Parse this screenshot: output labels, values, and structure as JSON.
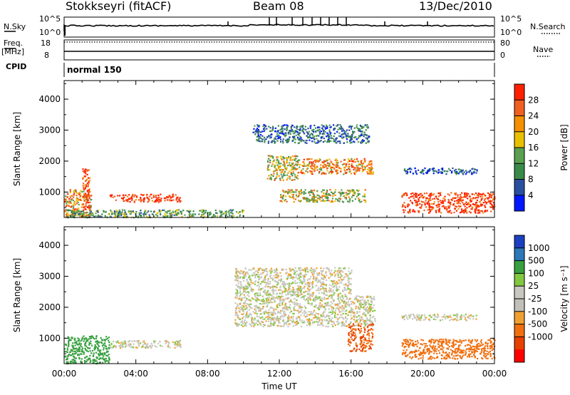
{
  "header": {
    "station": "Stokkseyri (fitACF)",
    "beam": "Beam 08",
    "date": "13/Dec/2010"
  },
  "strip_labels": {
    "nsky": "N.Sky",
    "nsky_top": "10^5",
    "nsky_bottom": "10^0",
    "nsearch": "N.Search",
    "nsearch_top": "10^5",
    "nsearch_bottom": "10^0",
    "freq": "Freq.",
    "freq_unit": "[MHz]",
    "freq_top": "18",
    "freq_bottom": "8",
    "nave": "Nave",
    "nave_top": "80",
    "nave_bottom": "0",
    "cpid": "CPID",
    "mode": "normal 150"
  },
  "colors": {
    "power": [
      "#0018ff",
      "#2a4fa0",
      "#3a8a4a",
      "#5aa050",
      "#e8c000",
      "#f59000",
      "#f06020",
      "#ff2000"
    ],
    "velocity": [
      "#1c40c0",
      "#2c78b8",
      "#38a040",
      "#80c840",
      "#c8c8c0",
      "#c0c0b8",
      "#f0a030",
      "#f07010",
      "#e84000",
      "#ff0000"
    ],
    "gray_scatter": "#c8c8c0"
  },
  "chart_data": [
    {
      "type": "heatmap",
      "title": "",
      "xlabel": "Time UT",
      "ylabel": "Slant Range [km]",
      "x_ticks": [
        "00:00",
        "04:00",
        "08:00",
        "12:00",
        "16:00",
        "20:00",
        "00:00"
      ],
      "y_ticks": [
        1000,
        2000,
        3000,
        4000
      ],
      "ylim": [
        180,
        4600
      ],
      "colorbar": {
        "label": "Power [dB]",
        "ticks": [
          "4",
          "8",
          "12",
          "16",
          "20",
          "24",
          "28"
        ]
      },
      "regions": [
        {
          "t0": 0.0,
          "t1": 1.5,
          "r0": 200,
          "r1": 1100,
          "value": 22
        },
        {
          "t0": 1.0,
          "t1": 1.4,
          "r0": 400,
          "r1": 1800,
          "value": 26
        },
        {
          "t0": 2.5,
          "t1": 6.5,
          "r0": 700,
          "r1": 950,
          "value": 27
        },
        {
          "t0": 0.0,
          "t1": 10.0,
          "r0": 200,
          "r1": 450,
          "value": 14
        },
        {
          "t0": 11.3,
          "t1": 13.0,
          "r0": 1400,
          "r1": 2200,
          "value": 18
        },
        {
          "t0": 13.0,
          "t1": 17.2,
          "r0": 1600,
          "r1": 2100,
          "value": 22
        },
        {
          "t0": 12.0,
          "t1": 16.8,
          "r0": 700,
          "r1": 1100,
          "value": 18
        },
        {
          "t0": 18.8,
          "t1": 24.0,
          "r0": 350,
          "r1": 1000,
          "value": 27
        },
        {
          "t0": 18.8,
          "t1": 23.0,
          "r0": 1600,
          "r1": 1800,
          "value": 8
        },
        {
          "t0": 10.5,
          "t1": 17.0,
          "r0": 2600,
          "r1": 3200,
          "value": 10
        }
      ]
    },
    {
      "type": "heatmap",
      "title": "",
      "xlabel": "Time UT",
      "ylabel": "Slant Range [km]",
      "x_ticks": [
        "00:00",
        "04:00",
        "08:00",
        "12:00",
        "16:00",
        "20:00",
        "00:00"
      ],
      "y_ticks": [
        1000,
        2000,
        3000,
        4000
      ],
      "ylim": [
        180,
        4600
      ],
      "colorbar": {
        "label": "Velocity [m s⁻¹]",
        "ticks": [
          "1000",
          "500",
          "100",
          "25",
          "-25",
          "-100",
          "-500",
          "-1000"
        ]
      },
      "regions": [
        {
          "t0": 0.0,
          "t1": 2.5,
          "r0": 200,
          "r1": 1100,
          "value": 100
        },
        {
          "t0": 2.5,
          "t1": 6.5,
          "r0": 700,
          "r1": 950,
          "value": 0
        },
        {
          "t0": 9.5,
          "t1": 17.3,
          "r0": 1400,
          "r1": 2400,
          "value": 0
        },
        {
          "t0": 9.5,
          "t1": 16.0,
          "r0": 2400,
          "r1": 3300,
          "value": 0
        },
        {
          "t0": 15.8,
          "t1": 17.2,
          "r0": 600,
          "r1": 1500,
          "value": -300
        },
        {
          "t0": 18.8,
          "t1": 24.0,
          "r0": 350,
          "r1": 1000,
          "value": -150
        },
        {
          "t0": 18.8,
          "t1": 23.0,
          "r0": 1600,
          "r1": 1800,
          "value": 0
        }
      ]
    }
  ]
}
